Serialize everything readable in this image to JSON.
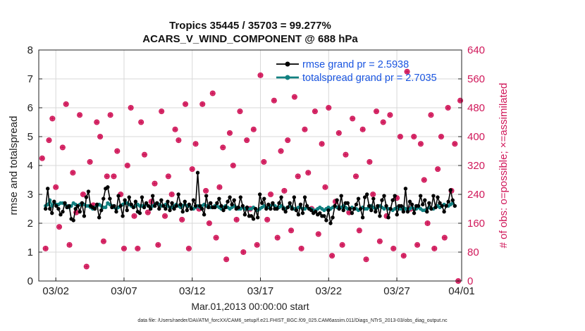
{
  "colors": {
    "rmse": "#000000",
    "spread": "#118080",
    "obs": "#d0185a",
    "legend_text": "#1a55e0",
    "axis": "#222222",
    "grid": "#d8d8d8"
  },
  "chart_data": {
    "type": "line",
    "title": "Tropics 35445 / 35703 = 99.277%",
    "subtitle": "ACARS_V_WIND_COMPONENT @ 688 hPa",
    "ylabel": "rmse and totalspread",
    "ylabel_right": "# of obs: o=possible; ×=assimilated",
    "xlabel": "Mar.01,2013 00:00:00 start",
    "footer": "data file: /Users/raeder/DAI/ATM_forcXX/CAM6_setup/f.e21.FHIST_BGC.f09_025.CAM6assim.011/Diags_NTrS_2013-03/obs_diag_output.nc",
    "xlim_days": [
      0.5,
      31.5
    ],
    "ylim": [
      0,
      8
    ],
    "ylim_right": [
      0,
      640
    ],
    "yticks": [
      "0",
      "1",
      "2",
      "3",
      "4",
      "5",
      "6",
      "7",
      "8"
    ],
    "yticks_right": [
      "0",
      "80",
      "160",
      "240",
      "320",
      "400",
      "480",
      "560",
      "640"
    ],
    "xticks": [
      {
        "day": 1.75,
        "label": "03/02"
      },
      {
        "day": 6.75,
        "label": "03/07"
      },
      {
        "day": 11.75,
        "label": "03/12"
      },
      {
        "day": 16.75,
        "label": "03/17"
      },
      {
        "day": 21.75,
        "label": "03/22"
      },
      {
        "day": 26.75,
        "label": "03/27"
      },
      {
        "day": 31.5,
        "label": "04/01"
      }
    ],
    "legend": [
      "rmse grand pr = 2.5938",
      "totalspread grand pr = 2.7035"
    ],
    "rmse": [
      2.5,
      3.2,
      2.5,
      2.35,
      2.75,
      2.6,
      2.5,
      2.3,
      2.4,
      2.7,
      2.55,
      2.6,
      2.15,
      2.1,
      2.5,
      2.6,
      2.4,
      2.7,
      2.25,
      2.9,
      3.1,
      2.6,
      2.55,
      2.5,
      2.65,
      2.2,
      2.45,
      2.85,
      3.2,
      3.25,
      2.85,
      2.55,
      2.6,
      2.4,
      2.95,
      2.6,
      2.25,
      2.8,
      2.45,
      2.9,
      2.65,
      2.55,
      2.75,
      2.4,
      2.35,
      2.9,
      2.55,
      2.7,
      2.6,
      2.5,
      2.95,
      2.6,
      2.7,
      2.5,
      2.8,
      2.6,
      2.5,
      2.75,
      2.45,
      2.7,
      2.5,
      2.6,
      3.0,
      2.65,
      2.4,
      2.75,
      2.45,
      2.65,
      2.5,
      2.8,
      2.6,
      3.75,
      2.6,
      2.5,
      2.3,
      2.95,
      2.55,
      2.7,
      2.55,
      2.55,
      2.7,
      2.85,
      2.6,
      2.45,
      2.55,
      2.75,
      2.9,
      2.65,
      2.8,
      2.5,
      2.55,
      2.9,
      2.6,
      2.3,
      2.55,
      2.25,
      2.25,
      2.15,
      2.5,
      2.2,
      3.0,
      2.7,
      2.85,
      2.5,
      2.65,
      2.5,
      2.7,
      2.5,
      2.5,
      2.7,
      2.9,
      2.5,
      2.4,
      2.55,
      2.7,
      2.5,
      2.9,
      2.45,
      2.3,
      2.65,
      2.35,
      2.9,
      2.6,
      2.5,
      2.45,
      2.35,
      2.4,
      2.3,
      2.35,
      2.25,
      2.25,
      2.1,
      2.45,
      2.0,
      2.2,
      2.6,
      2.8,
      2.5,
      2.95,
      2.45,
      2.7,
      2.7,
      2.5,
      2.35,
      2.5,
      2.65,
      2.85,
      2.5,
      2.2,
      2.9,
      3.0,
      2.6,
      2.45,
      2.85,
      2.4,
      2.6,
      2.25,
      2.8,
      2.95,
      2.6,
      2.2,
      2.5,
      2.8,
      2.95,
      2.3,
      2.6,
      2.6,
      2.4,
      3.2,
      2.4,
      2.75,
      2.65,
      2.35,
      2.6,
      2.6,
      2.95,
      2.65,
      2.8,
      2.4,
      2.7,
      2.5,
      2.95,
      2.55,
      2.9,
      2.7,
      2.6,
      2.4,
      2.6,
      2.75,
      3.15,
      2.8,
      2.6
    ],
    "spread": [
      2.6,
      2.65,
      2.8,
      2.6,
      2.7,
      2.65,
      2.65,
      2.7,
      2.7,
      2.65,
      2.6,
      2.55,
      2.6,
      2.7,
      2.65,
      2.6,
      2.65,
      2.7,
      2.65,
      2.6,
      2.6,
      2.55,
      2.5,
      2.55,
      2.6,
      2.65,
      2.6,
      2.55,
      2.55,
      2.7,
      2.65,
      2.6,
      2.55,
      2.5,
      2.55,
      2.6,
      2.65,
      2.7,
      2.7,
      2.65,
      2.6,
      2.55,
      2.6,
      2.65,
      2.6,
      2.6,
      2.6,
      2.65,
      2.6,
      2.55,
      2.6,
      2.65,
      2.7,
      2.65,
      2.6,
      2.6,
      2.65,
      2.6,
      2.55,
      2.55,
      2.6,
      2.65,
      2.6,
      2.55,
      2.6,
      2.65,
      2.6,
      2.6,
      2.55,
      2.5,
      2.55,
      2.6,
      2.55,
      2.6,
      2.65,
      2.6,
      2.6,
      2.55,
      2.55,
      2.6,
      2.6,
      2.55,
      2.5,
      2.55,
      2.6,
      2.55,
      2.5,
      2.55,
      2.6,
      2.55,
      2.5,
      2.5,
      2.55,
      2.5,
      2.5,
      2.5,
      2.5,
      2.55,
      2.5,
      2.45,
      2.5,
      2.55,
      2.6,
      2.55,
      2.55,
      2.6,
      2.65,
      2.6,
      2.55,
      2.55,
      2.6,
      2.55,
      2.5,
      2.55,
      2.6,
      2.55,
      2.5,
      2.5,
      2.55,
      2.55,
      2.5,
      2.5,
      2.55,
      2.5,
      2.5,
      2.45,
      2.45,
      2.5,
      2.55,
      2.5,
      2.45,
      2.5,
      2.55,
      2.5,
      2.55,
      2.6,
      2.55,
      2.5,
      2.55,
      2.6,
      2.55,
      2.5,
      2.5,
      2.55,
      2.5,
      2.5,
      2.45,
      2.5,
      2.55,
      2.5,
      2.5,
      2.55,
      2.6,
      2.55,
      2.5,
      2.55,
      2.6,
      2.55,
      2.5,
      2.55,
      2.5,
      2.5,
      2.45,
      2.5,
      2.55,
      2.5,
      2.5,
      2.55,
      2.5,
      2.45,
      2.5,
      2.55,
      2.5,
      2.5,
      2.55,
      2.5,
      2.45,
      2.45,
      2.5,
      2.55,
      2.5,
      2.5,
      2.55,
      2.6,
      2.55,
      2.6,
      2.65,
      2.6,
      2.6,
      2.65,
      2.7,
      2.6
    ],
    "obs_possible": [
      {
        "day": 0.75,
        "count": 340
      },
      {
        "day": 1.0,
        "count": 90
      },
      {
        "day": 1.25,
        "count": 390
      },
      {
        "day": 1.5,
        "count": 450
      },
      {
        "day": 1.75,
        "count": 260
      },
      {
        "day": 2.0,
        "count": 150
      },
      {
        "day": 2.25,
        "count": 370
      },
      {
        "day": 2.5,
        "count": 490
      },
      {
        "day": 2.75,
        "count": 100
      },
      {
        "day": 3.0,
        "count": 300
      },
      {
        "day": 3.25,
        "count": 190
      },
      {
        "day": 3.5,
        "count": 460
      },
      {
        "day": 3.75,
        "count": 240
      },
      {
        "day": 4.0,
        "count": 40
      },
      {
        "day": 4.25,
        "count": 330
      },
      {
        "day": 4.5,
        "count": 210
      },
      {
        "day": 4.75,
        "count": 440
      },
      {
        "day": 5.0,
        "count": 400
      },
      {
        "day": 5.25,
        "count": 110
      },
      {
        "day": 5.5,
        "count": 290
      },
      {
        "day": 5.75,
        "count": 460
      },
      {
        "day": 6.0,
        "count": 290
      },
      {
        "day": 6.25,
        "count": 360
      },
      {
        "day": 6.5,
        "count": 240
      },
      {
        "day": 6.75,
        "count": 90
      },
      {
        "day": 7.0,
        "count": 320
      },
      {
        "day": 7.25,
        "count": 480
      },
      {
        "day": 7.5,
        "count": 180
      },
      {
        "day": 7.75,
        "count": 90
      },
      {
        "day": 8.0,
        "count": 440
      },
      {
        "day": 8.25,
        "count": 350
      },
      {
        "day": 8.5,
        "count": 190
      },
      {
        "day": 8.75,
        "count": 220
      },
      {
        "day": 9.0,
        "count": 270
      },
      {
        "day": 9.25,
        "count": 100
      },
      {
        "day": 9.5,
        "count": 470
      },
      {
        "day": 9.75,
        "count": 180
      },
      {
        "day": 10.0,
        "count": 290
      },
      {
        "day": 10.25,
        "count": 240
      },
      {
        "day": 10.5,
        "count": 420
      },
      {
        "day": 10.75,
        "count": 390
      },
      {
        "day": 11.0,
        "count": 170
      },
      {
        "day": 11.25,
        "count": 490
      },
      {
        "day": 11.5,
        "count": 90
      },
      {
        "day": 11.75,
        "count": 310
      },
      {
        "day": 12.0,
        "count": 380
      },
      {
        "day": 12.25,
        "count": 200
      },
      {
        "day": 12.5,
        "count": 490
      },
      {
        "day": 12.75,
        "count": 250
      },
      {
        "day": 13.0,
        "count": 160
      },
      {
        "day": 13.25,
        "count": 520
      },
      {
        "day": 13.5,
        "count": 120
      },
      {
        "day": 13.75,
        "count": 260
      },
      {
        "day": 14.0,
        "count": 370
      },
      {
        "day": 14.25,
        "count": 60
      },
      {
        "day": 14.5,
        "count": 410
      },
      {
        "day": 14.75,
        "count": 320
      },
      {
        "day": 15.0,
        "count": 170
      },
      {
        "day": 15.25,
        "count": 470
      },
      {
        "day": 15.5,
        "count": 80
      },
      {
        "day": 15.75,
        "count": 390
      },
      {
        "day": 16.0,
        "count": 200
      },
      {
        "day": 16.25,
        "count": 420
      },
      {
        "day": 16.5,
        "count": 100
      },
      {
        "day": 16.75,
        "count": 570
      },
      {
        "day": 17.0,
        "count": 330
      },
      {
        "day": 17.25,
        "count": 170
      },
      {
        "day": 17.5,
        "count": 240
      },
      {
        "day": 17.75,
        "count": 500
      },
      {
        "day": 18.0,
        "count": 120
      },
      {
        "day": 18.25,
        "count": 360
      },
      {
        "day": 18.5,
        "count": 250
      },
      {
        "day": 18.75,
        "count": 390
      },
      {
        "day": 19.0,
        "count": 140
      },
      {
        "day": 19.25,
        "count": 510
      },
      {
        "day": 19.5,
        "count": 290
      },
      {
        "day": 19.75,
        "count": 90
      },
      {
        "day": 20.0,
        "count": 420
      },
      {
        "day": 20.25,
        "count": 300
      },
      {
        "day": 20.5,
        "count": 200
      },
      {
        "day": 20.75,
        "count": 470
      },
      {
        "day": 21.0,
        "count": 130
      },
      {
        "day": 21.25,
        "count": 380
      },
      {
        "day": 21.5,
        "count": 260
      },
      {
        "day": 21.75,
        "count": 480
      },
      {
        "day": 22.0,
        "count": 70
      },
      {
        "day": 22.25,
        "count": 220
      },
      {
        "day": 22.5,
        "count": 410
      },
      {
        "day": 22.75,
        "count": 100
      },
      {
        "day": 23.0,
        "count": 350
      },
      {
        "day": 23.25,
        "count": 190
      },
      {
        "day": 23.5,
        "count": 450
      },
      {
        "day": 23.75,
        "count": 290
      },
      {
        "day": 24.0,
        "count": 140
      },
      {
        "day": 24.25,
        "count": 420
      },
      {
        "day": 24.5,
        "count": 60
      },
      {
        "day": 24.75,
        "count": 330
      },
      {
        "day": 25.0,
        "count": 240
      },
      {
        "day": 25.25,
        "count": 470
      },
      {
        "day": 25.5,
        "count": 110
      },
      {
        "day": 25.75,
        "count": 440
      },
      {
        "day": 26.0,
        "count": 180
      },
      {
        "day": 26.25,
        "count": 460
      },
      {
        "day": 26.5,
        "count": 90
      },
      {
        "day": 26.75,
        "count": 230
      },
      {
        "day": 27.0,
        "count": 400
      },
      {
        "day": 27.25,
        "count": 70
      },
      {
        "day": 27.5,
        "count": 580
      },
      {
        "day": 27.75,
        "count": 200
      },
      {
        "day": 28.0,
        "count": 400
      },
      {
        "day": 28.25,
        "count": 100
      },
      {
        "day": 28.5,
        "count": 380
      },
      {
        "day": 28.75,
        "count": 280
      },
      {
        "day": 29.0,
        "count": 160
      },
      {
        "day": 29.25,
        "count": 460
      },
      {
        "day": 29.5,
        "count": 90
      },
      {
        "day": 29.75,
        "count": 310
      },
      {
        "day": 30.0,
        "count": 400
      },
      {
        "day": 30.25,
        "count": 120
      },
      {
        "day": 30.5,
        "count": 480
      },
      {
        "day": 30.75,
        "count": 250
      },
      {
        "day": 31.0,
        "count": 380
      },
      {
        "day": 31.25,
        "count": 0
      },
      {
        "day": 31.4,
        "count": 500
      }
    ]
  }
}
